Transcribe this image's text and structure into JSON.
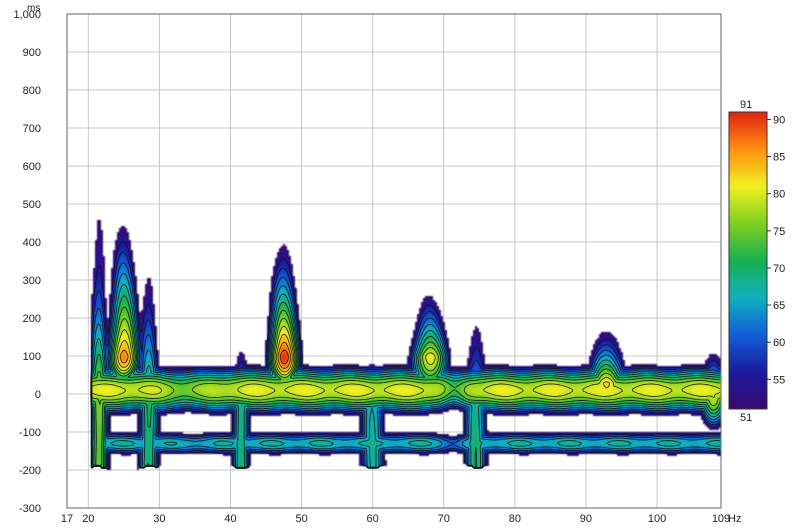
{
  "chart_data": {
    "type": "heatmap",
    "title": "",
    "xlabel": "",
    "ylabel": "",
    "x_unit": "Hz",
    "y_unit": "ms",
    "xlim": [
      17,
      109
    ],
    "ylim": [
      -300,
      1000
    ],
    "x_ticks": [
      17,
      20,
      30,
      40,
      50,
      60,
      70,
      80,
      90,
      100,
      109
    ],
    "x_tick_labels": [
      "17",
      "20",
      "30",
      "40",
      "50",
      "60",
      "70",
      "80",
      "90",
      "100",
      "109"
    ],
    "y_ticks": [
      -300,
      -200,
      -100,
      0,
      100,
      200,
      300,
      400,
      500,
      600,
      700,
      800,
      900,
      1000
    ],
    "y_tick_labels": [
      "-300",
      "-200",
      "-100",
      "0",
      "100",
      "200",
      "300",
      "400",
      "500",
      "600",
      "700",
      "800",
      "900",
      "1,000"
    ],
    "grid": true,
    "colorbar": {
      "min": 51,
      "max": 91,
      "ticks": [
        55,
        60,
        65,
        70,
        75,
        80,
        85,
        90
      ],
      "min_label": "51",
      "max_label": "91",
      "placement": "right"
    },
    "contour_levels": [
      55,
      58,
      61,
      64,
      67,
      70,
      73,
      76,
      79,
      82,
      85,
      88
    ],
    "floor_level": 51,
    "peaks": [
      {
        "freq": 25,
        "time_ms": 100,
        "level": 88
      },
      {
        "freq": 47.5,
        "time_ms": 100,
        "level": 90
      },
      {
        "freq": 68,
        "time_ms": 100,
        "level": 81
      },
      {
        "freq": 93,
        "time_ms": 30,
        "level": 82
      },
      {
        "freq": 108,
        "time_ms": 0,
        "level": 79
      }
    ]
  },
  "colors": {
    "scale": [
      "#3a0a6e",
      "#1a1aa0",
      "#1060d8",
      "#10b0c0",
      "#18b050",
      "#80d020",
      "#f0f020",
      "#ff9010",
      "#e02010"
    ],
    "grid": "#c8c8c8",
    "axis": "#555555"
  }
}
